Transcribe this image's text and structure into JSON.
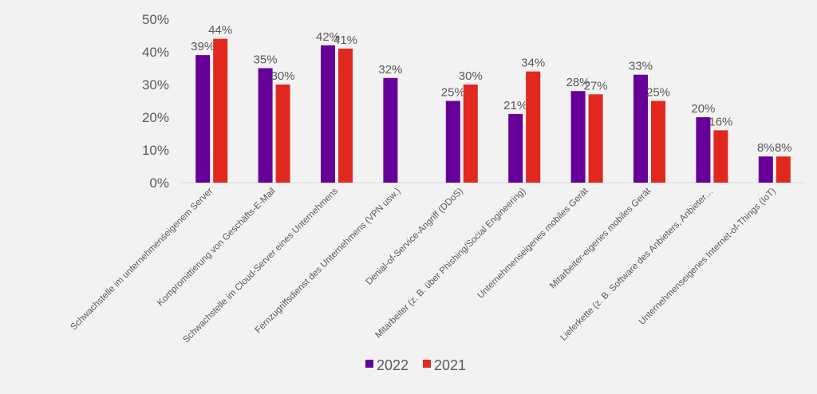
{
  "chart_data": {
    "type": "bar",
    "title": "",
    "xlabel": "",
    "ylabel": "",
    "ylim": [
      0,
      50
    ],
    "yticks": [
      "0%",
      "10%",
      "20%",
      "30%",
      "40%",
      "50%"
    ],
    "grid": false,
    "legend_position": "bottom",
    "categories": [
      "Schwachstelle im unternehmenseigenem Server",
      "Kompromittierung von Geschäfts-E-Mail",
      "Schwachstelle im Cloud-Server eines Unternehmens",
      "Fernzugriffsdienst des Unternehmens (VPN usw.)",
      "Denial-of-Service-Angriff (DDoS)",
      "Mitarbeiter (z. B. über Phishing/Social Engineering)",
      "Unternehmenseigenes mobiles Gerät",
      "Mitarbeiter-eigenes mobiles Gerät",
      "Lieferkette (z. B. Software des Anbieters, Anbieter…",
      "Unternehmenseigenes Internet-of-Things (IoT)"
    ],
    "series": [
      {
        "name": "2022",
        "color": "#660099",
        "values": [
          39,
          35,
          42,
          32,
          25,
          21,
          28,
          33,
          20,
          8
        ]
      },
      {
        "name": "2021",
        "color": "#e0281e",
        "values": [
          44,
          30,
          41,
          null,
          30,
          34,
          27,
          25,
          16,
          8
        ]
      }
    ]
  }
}
